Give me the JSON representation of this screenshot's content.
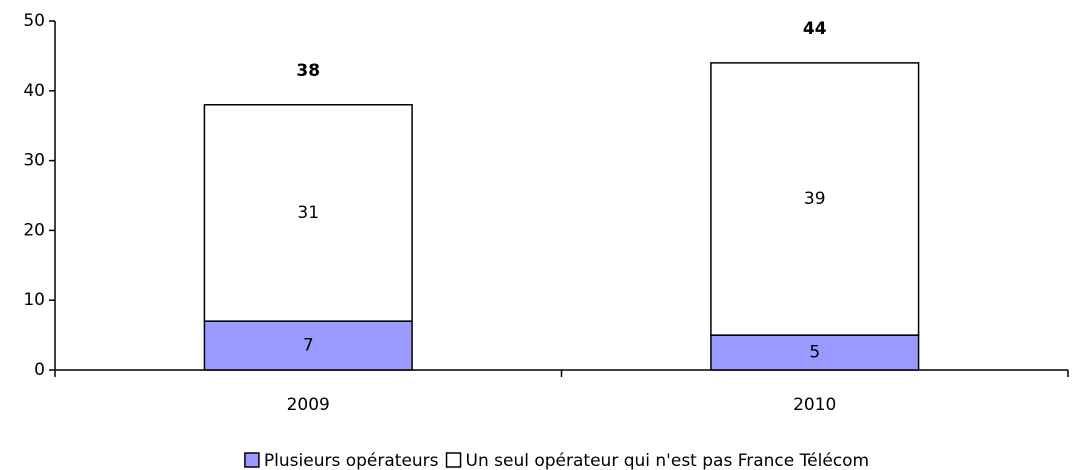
{
  "chart_data": {
    "type": "stacked_bar",
    "categories": [
      "2009",
      "2010"
    ],
    "series": [
      {
        "name": "Plusieurs opérateurs",
        "color": "#9999ff",
        "values": [
          7,
          5
        ]
      },
      {
        "name": "Un seul opérateur qui n'est pas France Télécom",
        "color": "#ffffff",
        "values": [
          31,
          39
        ]
      }
    ],
    "totals": [
      38,
      44
    ],
    "ylim": [
      0,
      50
    ],
    "yticks": [
      0,
      10,
      20,
      30,
      40,
      50
    ],
    "legend": "bottom"
  }
}
